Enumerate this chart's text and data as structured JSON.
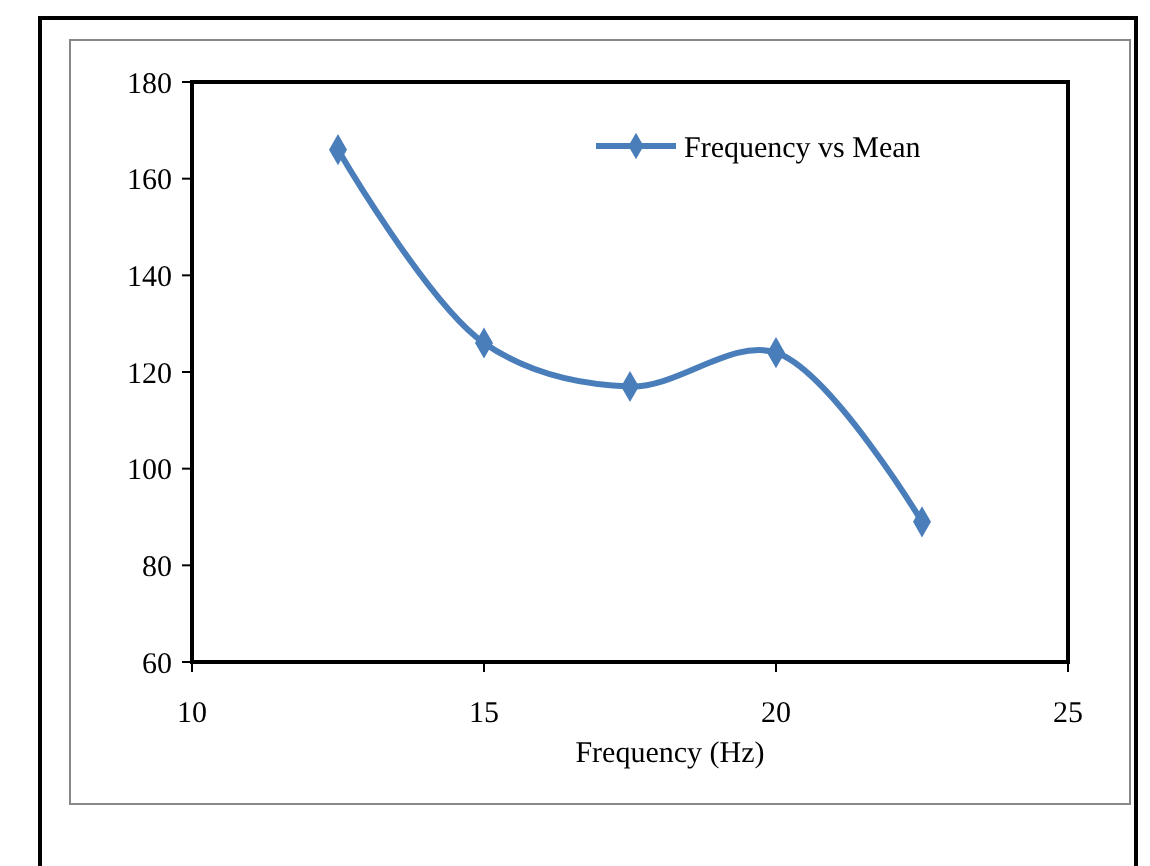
{
  "chart_data": {
    "type": "line",
    "xlabel": "Frequency (Hz)",
    "x": [
      12.5,
      15,
      17.5,
      20,
      22.5
    ],
    "series": [
      {
        "name": "Frequency vs Mean",
        "color": "#4a7ebb",
        "values": [
          166,
          126,
          117,
          124,
          89
        ]
      }
    ],
    "xlim": [
      10,
      25
    ],
    "xticks": [
      10,
      15,
      20,
      25
    ],
    "ylim": [
      60,
      180
    ],
    "yticks": [
      60,
      80,
      100,
      120,
      140,
      160,
      180
    ],
    "grid": false,
    "legend": "top right",
    "marker": "diamond",
    "line_style": "solid"
  }
}
